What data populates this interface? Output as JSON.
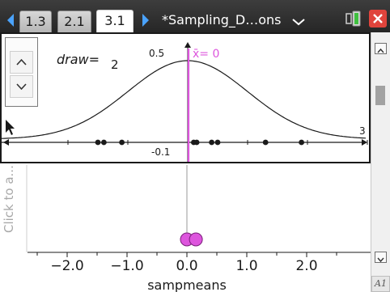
{
  "tabs": [
    {
      "label": "1.3",
      "active": false
    },
    {
      "label": "2.1",
      "active": false
    },
    {
      "label": "3.1",
      "active": true
    }
  ],
  "document": {
    "title": "*Sampling_D…ons"
  },
  "icons": {
    "prev": "left-arrow-icon",
    "next": "right-arrow-icon",
    "menu": "chevron-down-icon",
    "battery": "battery-icon",
    "close": "close-icon"
  },
  "slider": {
    "variable": "draw",
    "equals": "=",
    "value": "2"
  },
  "top_plot": {
    "label_peak": "0.5",
    "mean_label": "x̄= 0",
    "label_min": "-0.1",
    "label_right": "3"
  },
  "sidebar": {
    "hint": "Click to a..."
  },
  "bottom_plot": {
    "xlabel": "sampmeans",
    "tick_labels": [
      "−2.0",
      "−1.0",
      "0.0",
      "1.0",
      "2.0"
    ]
  },
  "badge": "A1",
  "colors": {
    "mean_line": "#dd55dd",
    "dot_fill": "#dd55dd",
    "curve": "#1a1a1a"
  },
  "chart_data": [
    {
      "type": "line",
      "description_shape": "normal curve",
      "mean": 0,
      "x_range": [
        -3,
        3
      ],
      "y_peak": 0.4,
      "sample_points_x": [
        -1.5,
        -1.4,
        -1.1,
        0.1,
        0.15,
        0.4,
        0.5,
        1.3,
        1.9
      ],
      "mean_x": 0
    },
    {
      "type": "scatter",
      "xlabel": "sampmeans",
      "xticks": [
        -2.0,
        -1.0,
        0.0,
        1.0,
        2.0
      ],
      "xlim": [
        -2.8,
        2.8
      ],
      "points_x": [
        0.0,
        0.15
      ]
    }
  ]
}
